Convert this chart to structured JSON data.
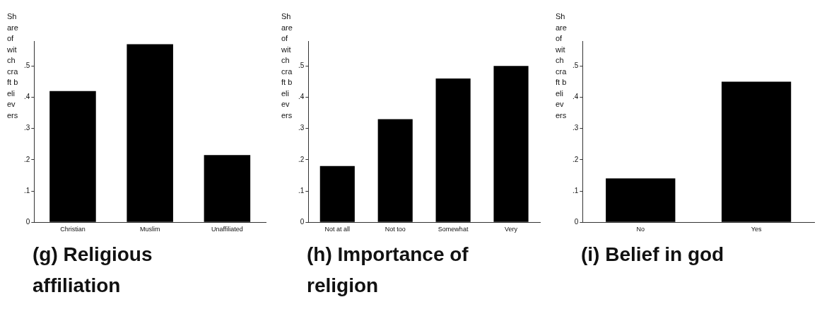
{
  "chart_data": [
    {
      "type": "bar",
      "title": "(g) Religious affiliation",
      "ylabel": "Share of witchcraft believers",
      "categories": [
        "Christian",
        "Muslim",
        "Unaffiliated"
      ],
      "values": [
        0.42,
        0.57,
        0.215
      ],
      "color": "#000000",
      "ylim": [
        0,
        0.58
      ],
      "yticks": [
        {
          "value": 0,
          "label": "0"
        },
        {
          "value": 0.1,
          "label": ".1"
        },
        {
          "value": 0.2,
          "label": ".2"
        },
        {
          "value": 0.3,
          "label": ".3"
        },
        {
          "value": 0.4,
          "label": ".4"
        },
        {
          "value": 0.5,
          "label": ".5"
        }
      ],
      "grid": false
    },
    {
      "type": "bar",
      "title": "(h) Importance of religion",
      "ylabel": "Share of witchcraft believers",
      "categories": [
        "Not at all",
        "Not too",
        "Somewhat",
        "Very"
      ],
      "values": [
        0.18,
        0.33,
        0.46,
        0.5
      ],
      "color": "#000000",
      "ylim": [
        0,
        0.58
      ],
      "yticks": [
        {
          "value": 0,
          "label": "0"
        },
        {
          "value": 0.1,
          "label": ".1"
        },
        {
          "value": 0.2,
          "label": ".2"
        },
        {
          "value": 0.3,
          "label": ".3"
        },
        {
          "value": 0.4,
          "label": ".4"
        },
        {
          "value": 0.5,
          "label": ".5"
        }
      ],
      "grid": false
    },
    {
      "type": "bar",
      "title": "(i) Belief in god",
      "ylabel": "Share of witchcraft believers",
      "categories": [
        "No",
        "Yes"
      ],
      "values": [
        0.14,
        0.45
      ],
      "color": "#000000",
      "ylim": [
        0,
        0.58
      ],
      "yticks": [
        {
          "value": 0,
          "label": "0"
        },
        {
          "value": 0.1,
          "label": ".1"
        },
        {
          "value": 0.2,
          "label": ".2"
        },
        {
          "value": 0.3,
          "label": ".3"
        },
        {
          "value": 0.4,
          "label": ".4"
        },
        {
          "value": 0.5,
          "label": ".5"
        }
      ],
      "grid": false
    }
  ]
}
